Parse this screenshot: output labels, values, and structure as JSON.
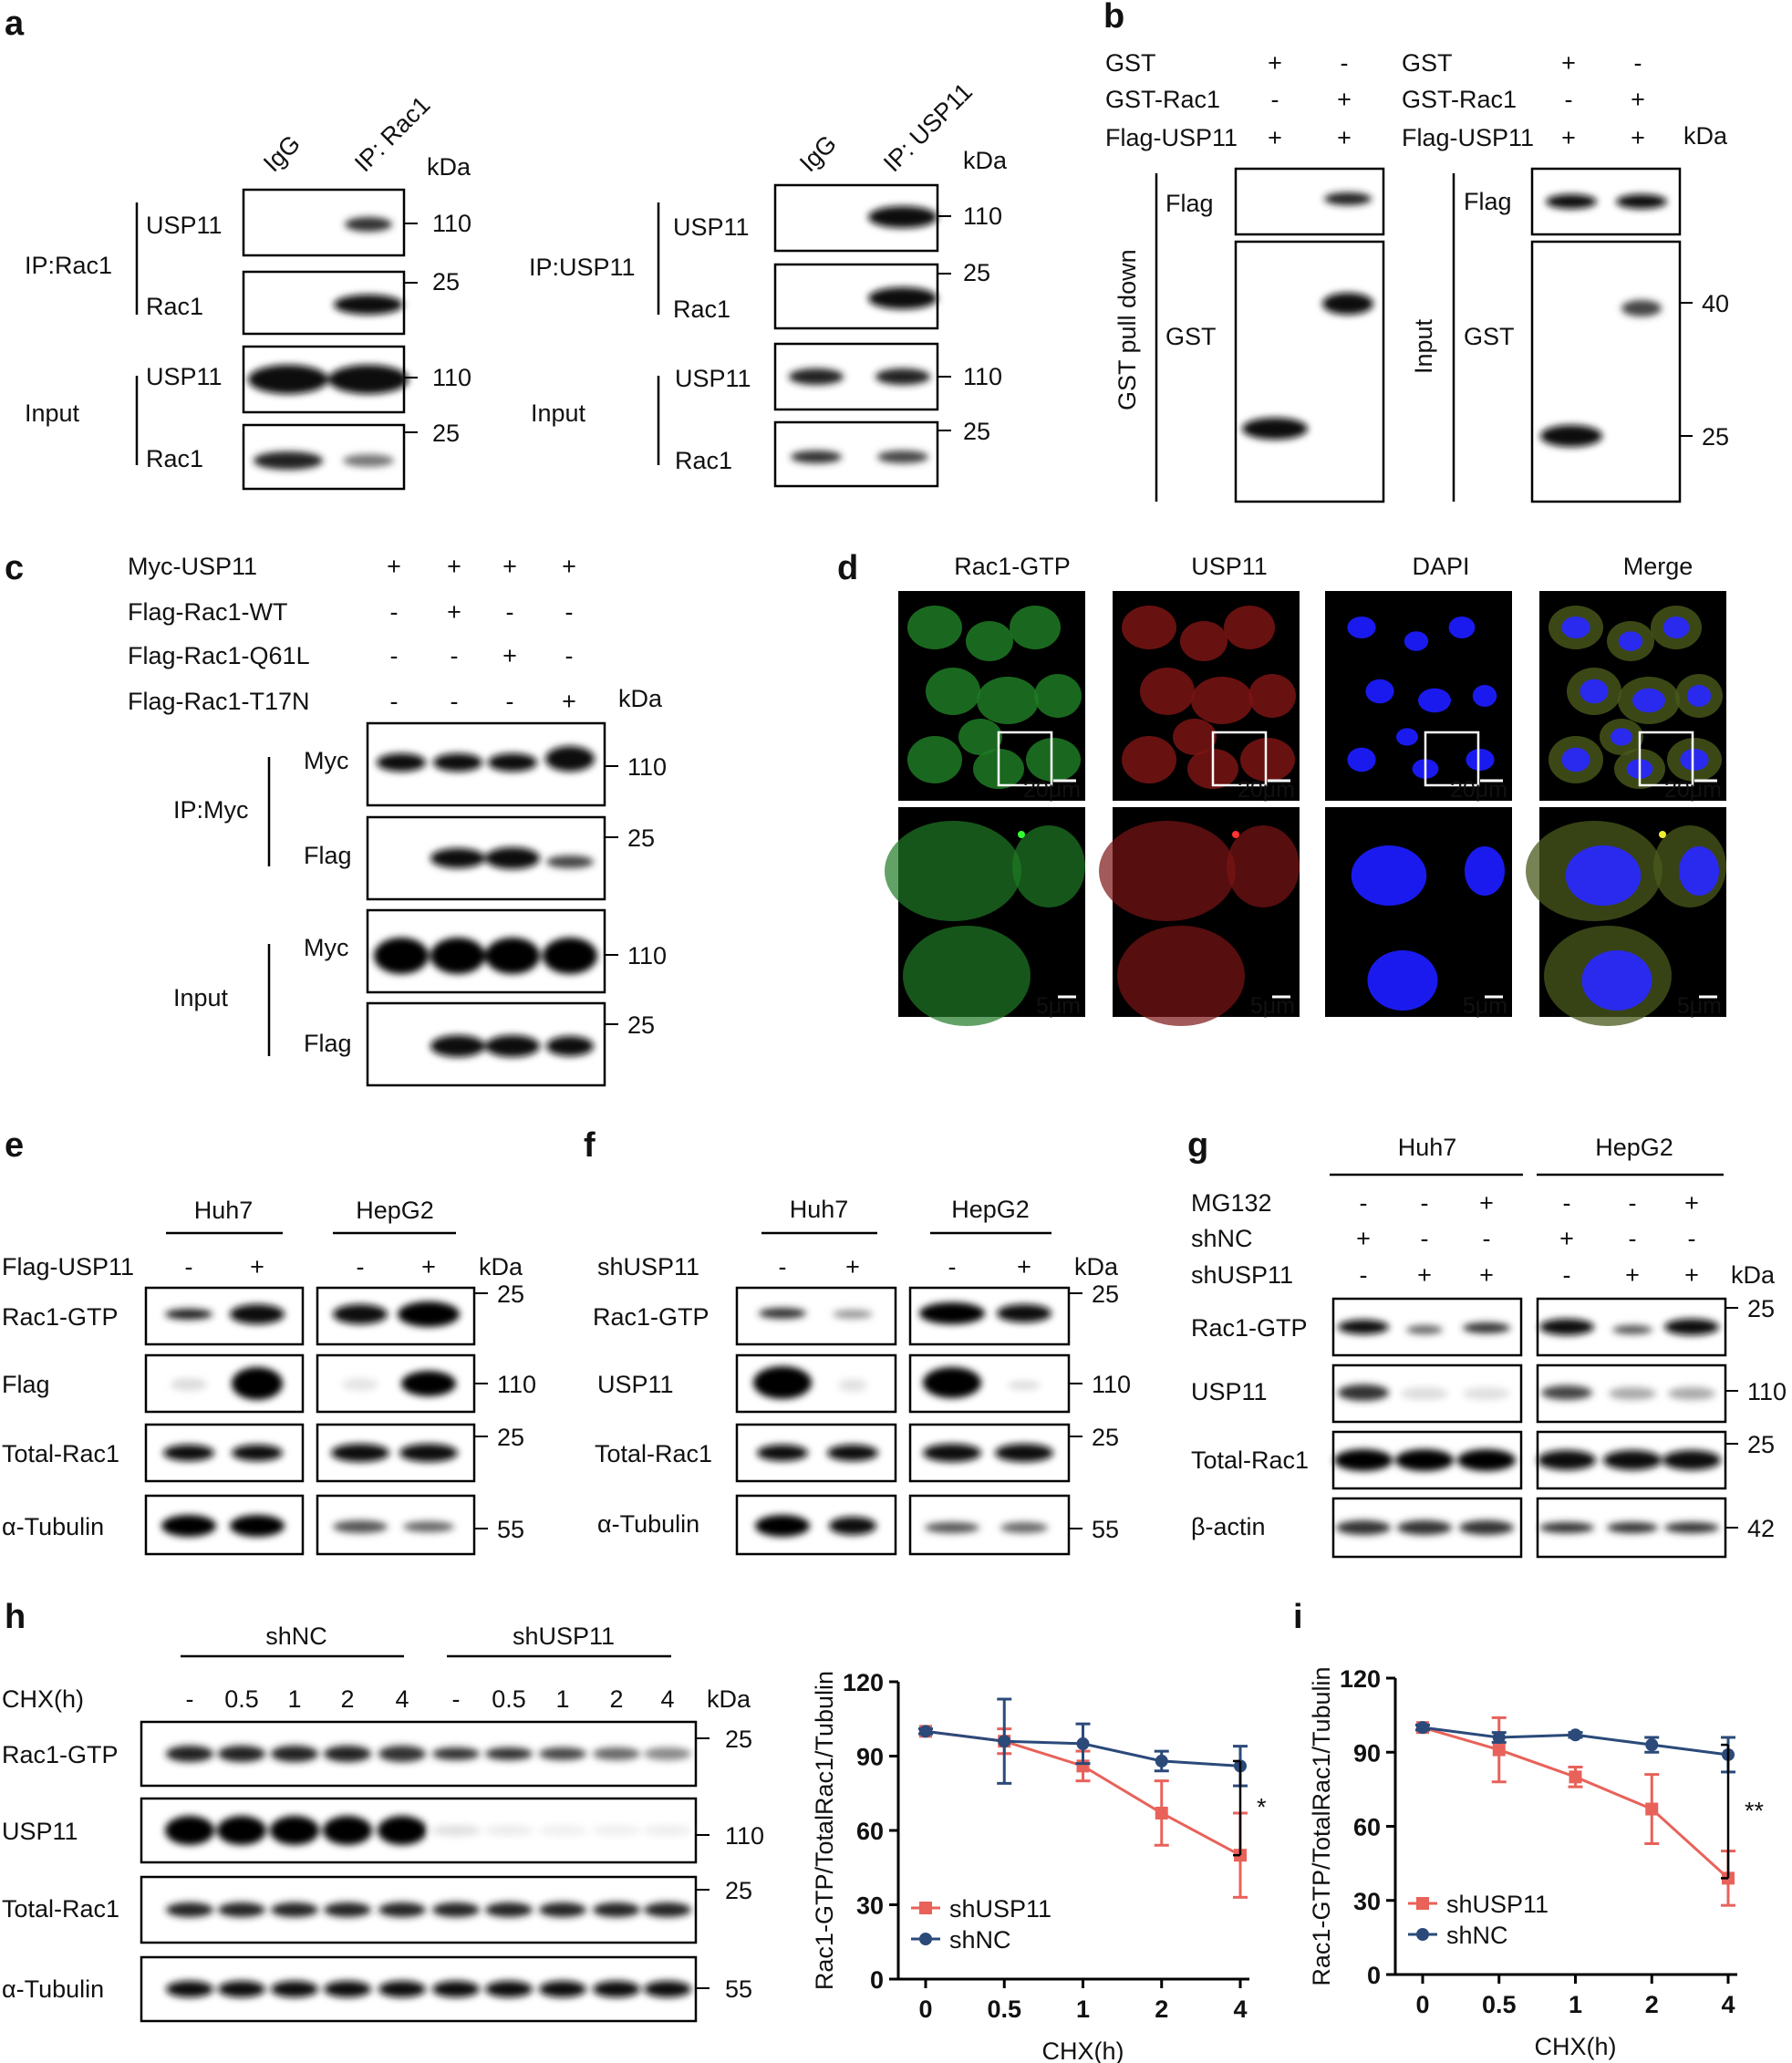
{
  "panels": {
    "a": "a",
    "b": "b",
    "c": "c",
    "d": "d",
    "e": "e",
    "f": "f",
    "g": "g",
    "h": "h",
    "i": "i"
  },
  "units": {
    "kda": "kDa"
  },
  "a": {
    "left": {
      "lanes": [
        "IgG",
        "IP: Rac1"
      ],
      "groups": [
        "IP:Rac1",
        "Input"
      ],
      "rows": [
        "USP11",
        "Rac1",
        "USP11",
        "Rac1"
      ],
      "mw": [
        "110",
        "25",
        "110",
        "25"
      ]
    },
    "right": {
      "lanes": [
        "IgG",
        "IP: USP11"
      ],
      "groups": [
        "IP:USP11",
        "Input"
      ],
      "rows": [
        "USP11",
        "Rac1",
        "USP11",
        "Rac1"
      ],
      "mw": [
        "110",
        "25",
        "110",
        "25"
      ]
    }
  },
  "b": {
    "conditions": [
      {
        "label": "GST",
        "values": [
          "+",
          "-"
        ]
      },
      {
        "label": "GST-Rac1",
        "values": [
          "-",
          "+"
        ]
      },
      {
        "label": "Flag-USP11",
        "values": [
          "+",
          "+"
        ]
      }
    ],
    "left_group": "GST pull down",
    "right_group": "Input",
    "rows": [
      "Flag",
      "GST"
    ],
    "mw": [
      "40",
      "25"
    ]
  },
  "c": {
    "conditions": [
      {
        "label": "Myc-USP11",
        "values": [
          "+",
          "+",
          "+",
          "+"
        ]
      },
      {
        "label": "Flag-Rac1-WT",
        "values": [
          "-",
          "+",
          "-",
          "-"
        ]
      },
      {
        "label": "Flag-Rac1-Q61L",
        "values": [
          "-",
          "-",
          "+",
          "-"
        ]
      },
      {
        "label": "Flag-Rac1-T17N",
        "values": [
          "-",
          "-",
          "-",
          "+"
        ]
      }
    ],
    "groups": [
      "IP:Myc",
      "Input"
    ],
    "rows": [
      "Myc",
      "Flag",
      "Myc",
      "Flag"
    ],
    "mw": [
      "110",
      "25",
      "110",
      "25"
    ]
  },
  "d": {
    "channels": [
      {
        "label": "Rac1-GTP",
        "color": "#22bb22"
      },
      {
        "label": "USP11",
        "color": "#cc1111"
      },
      {
        "label": "DAPI",
        "color": "#1111ee"
      },
      {
        "label": "Merge",
        "color": "#111111"
      }
    ],
    "scale_top": "20μm",
    "scale_bottom": "5μm"
  },
  "e": {
    "cells": [
      "Huh7",
      "HepG2"
    ],
    "condition": {
      "label": "Flag-USP11",
      "values": [
        "-",
        "+",
        "-",
        "+"
      ]
    },
    "rows": [
      "Rac1-GTP",
      "Flag",
      "Total-Rac1",
      "α-Tubulin"
    ],
    "mw": [
      "25",
      "110",
      "25",
      "55"
    ]
  },
  "f": {
    "cells": [
      "Huh7",
      "HepG2"
    ],
    "condition": {
      "label": "shUSP11",
      "values": [
        "-",
        "+",
        "-",
        "+"
      ]
    },
    "rows": [
      "Rac1-GTP",
      "USP11",
      "Total-Rac1",
      "α-Tubulin"
    ],
    "mw": [
      "25",
      "110",
      "25",
      "55"
    ]
  },
  "g": {
    "cells": [
      "Huh7",
      "HepG2"
    ],
    "conditions": [
      {
        "label": "MG132",
        "values": [
          "-",
          "-",
          "+",
          "-",
          "-",
          "+"
        ]
      },
      {
        "label": "shNC",
        "values": [
          "+",
          "-",
          "-",
          "+",
          "-",
          "-"
        ]
      },
      {
        "label": "shUSP11",
        "values": [
          "-",
          "+",
          "+",
          "-",
          "+",
          "+"
        ]
      }
    ],
    "rows": [
      "Rac1-GTP",
      "USP11",
      "Total-Rac1",
      "β-actin"
    ],
    "mw": [
      "25",
      "110",
      "25",
      "42"
    ]
  },
  "h": {
    "groups": [
      "shNC",
      "shUSP11"
    ],
    "cond_label": "CHX(h)",
    "times": [
      "-",
      "0.5",
      "1",
      "2",
      "4",
      "-",
      "0.5",
      "1",
      "2",
      "4"
    ],
    "rows": [
      "Rac1-GTP",
      "USP11",
      "Total-Rac1",
      "α-Tubulin"
    ],
    "mw": [
      "25",
      "110",
      "25",
      "55"
    ]
  },
  "chart_data": [
    {
      "type": "line",
      "panel": "h",
      "x": [
        "0",
        "0.5",
        "1",
        "2",
        "4"
      ],
      "xlabel": "CHX(h)",
      "ylabel": "Rac1-GTP/TotalRac1/Tubulin",
      "ylim": [
        0,
        120
      ],
      "yticks": [
        "0",
        "30",
        "60",
        "90",
        "120"
      ],
      "series": [
        {
          "name": "shUSP11",
          "color": "#e8625a",
          "marker": "square",
          "values": [
            100,
            96,
            86,
            67,
            50
          ],
          "err": [
            1,
            5,
            6,
            13,
            17
          ]
        },
        {
          "name": "shNC",
          "color": "#2b4a7a",
          "marker": "circle",
          "values": [
            100,
            96,
            95,
            88,
            86
          ],
          "err": [
            1,
            17,
            8,
            4,
            8
          ]
        }
      ],
      "significance": "*",
      "legend": "bottom-left"
    },
    {
      "type": "line",
      "panel": "i",
      "x": [
        "0",
        "0.5",
        "1",
        "2",
        "4"
      ],
      "xlabel": "CHX(h)",
      "ylabel": "Rac1-GTP/TotalRac1/Tubulin",
      "ylim": [
        0,
        120
      ],
      "yticks": [
        "0",
        "30",
        "60",
        "90",
        "120"
      ],
      "series": [
        {
          "name": "shUSP11",
          "color": "#e8625a",
          "marker": "square",
          "values": [
            100,
            91,
            80,
            67,
            39
          ],
          "err": [
            1,
            13,
            4,
            14,
            11
          ]
        },
        {
          "name": "shNC",
          "color": "#2b4a7a",
          "marker": "circle",
          "values": [
            100,
            96,
            97,
            93,
            89
          ],
          "err": [
            1,
            2,
            1,
            3,
            7
          ]
        }
      ],
      "significance": "**",
      "legend": "bottom-left"
    }
  ]
}
